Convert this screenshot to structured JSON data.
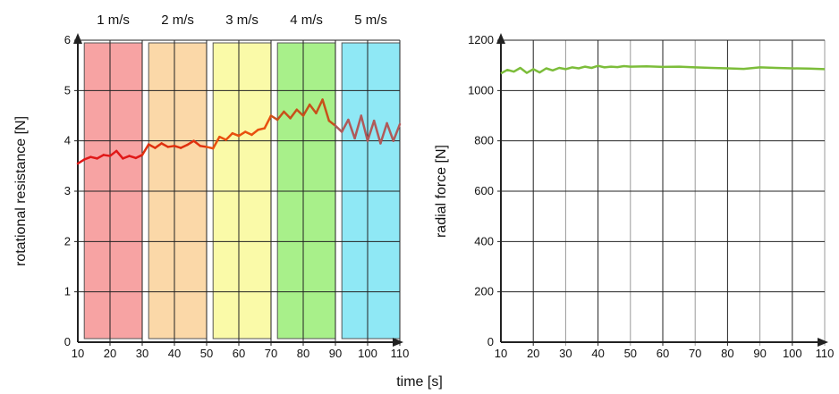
{
  "shared": {
    "xlabel": "time [s]"
  },
  "chart_data": [
    {
      "type": "line",
      "ylabel": "rotational resistance [N]",
      "xlim": [
        10,
        110
      ],
      "ylim": [
        0,
        6
      ],
      "x_ticks": [
        "10",
        "20",
        "30",
        "40",
        "50",
        "60",
        "70",
        "80",
        "90",
        "100",
        "110"
      ],
      "y_ticks": [
        "0",
        "1",
        "2",
        "3",
        "4",
        "5",
        "6"
      ],
      "grid": true,
      "bands": [
        {
          "label": "1 m/s",
          "start": 12,
          "end": 30,
          "color": "#f7a3a3",
          "line_color": "#e01818"
        },
        {
          "label": "2 m/s",
          "start": 32,
          "end": 50,
          "color": "#fbd8a8",
          "line_color": "#e0300f"
        },
        {
          "label": "3 m/s",
          "start": 52,
          "end": 70,
          "color": "#fafaa8",
          "line_color": "#e8500f"
        },
        {
          "label": "4 m/s",
          "start": 72,
          "end": 90,
          "color": "#a8f08a",
          "line_color": "#c8501a"
        },
        {
          "label": "5 m/s",
          "start": 92,
          "end": 110,
          "color": "#8fe8f5",
          "line_color": "#b05a5a"
        }
      ],
      "series": [
        {
          "x": [
            10,
            12,
            14,
            16,
            18,
            20,
            22,
            24,
            26,
            28,
            30,
            32,
            34,
            36,
            38,
            40,
            42,
            44,
            46,
            48,
            50,
            52,
            54,
            56,
            58,
            60,
            62,
            64,
            66,
            68,
            70,
            72,
            74,
            76,
            78,
            80,
            82,
            84,
            86,
            88,
            90,
            92,
            94,
            96,
            98,
            100,
            102,
            104,
            106,
            108,
            110
          ],
          "values": [
            3.55,
            3.63,
            3.68,
            3.65,
            3.72,
            3.7,
            3.8,
            3.65,
            3.7,
            3.66,
            3.72,
            3.93,
            3.86,
            3.95,
            3.88,
            3.9,
            3.86,
            3.92,
            4.0,
            3.9,
            3.88,
            3.85,
            4.08,
            4.02,
            4.15,
            4.1,
            4.18,
            4.12,
            4.22,
            4.25,
            4.5,
            4.42,
            4.58,
            4.45,
            4.62,
            4.5,
            4.72,
            4.55,
            4.82,
            4.4,
            4.3,
            4.18,
            4.42,
            4.05,
            4.5,
            4.0,
            4.4,
            3.95,
            4.35,
            4.0,
            4.33
          ]
        }
      ]
    },
    {
      "type": "line",
      "ylabel": "radial force [N]",
      "xlim": [
        10,
        110
      ],
      "ylim": [
        0,
        1200
      ],
      "x_ticks": [
        "10",
        "20",
        "30",
        "40",
        "50",
        "60",
        "70",
        "80",
        "90",
        "100",
        "110"
      ],
      "y_ticks": [
        "0",
        "200",
        "400",
        "600",
        "800",
        "1000",
        "1200"
      ],
      "grid": true,
      "series": [
        {
          "color": "#7cbd3a",
          "x": [
            10,
            12,
            14,
            16,
            18,
            20,
            22,
            24,
            26,
            28,
            30,
            32,
            34,
            36,
            38,
            40,
            42,
            44,
            46,
            48,
            50,
            55,
            60,
            65,
            70,
            75,
            80,
            85,
            90,
            95,
            100,
            105,
            110
          ],
          "values": [
            1068,
            1082,
            1075,
            1090,
            1070,
            1085,
            1072,
            1088,
            1080,
            1090,
            1085,
            1092,
            1088,
            1095,
            1090,
            1098,
            1092,
            1095,
            1093,
            1097,
            1095,
            1096,
            1094,
            1095,
            1092,
            1090,
            1088,
            1086,
            1092,
            1090,
            1088,
            1087,
            1085
          ]
        }
      ]
    }
  ]
}
